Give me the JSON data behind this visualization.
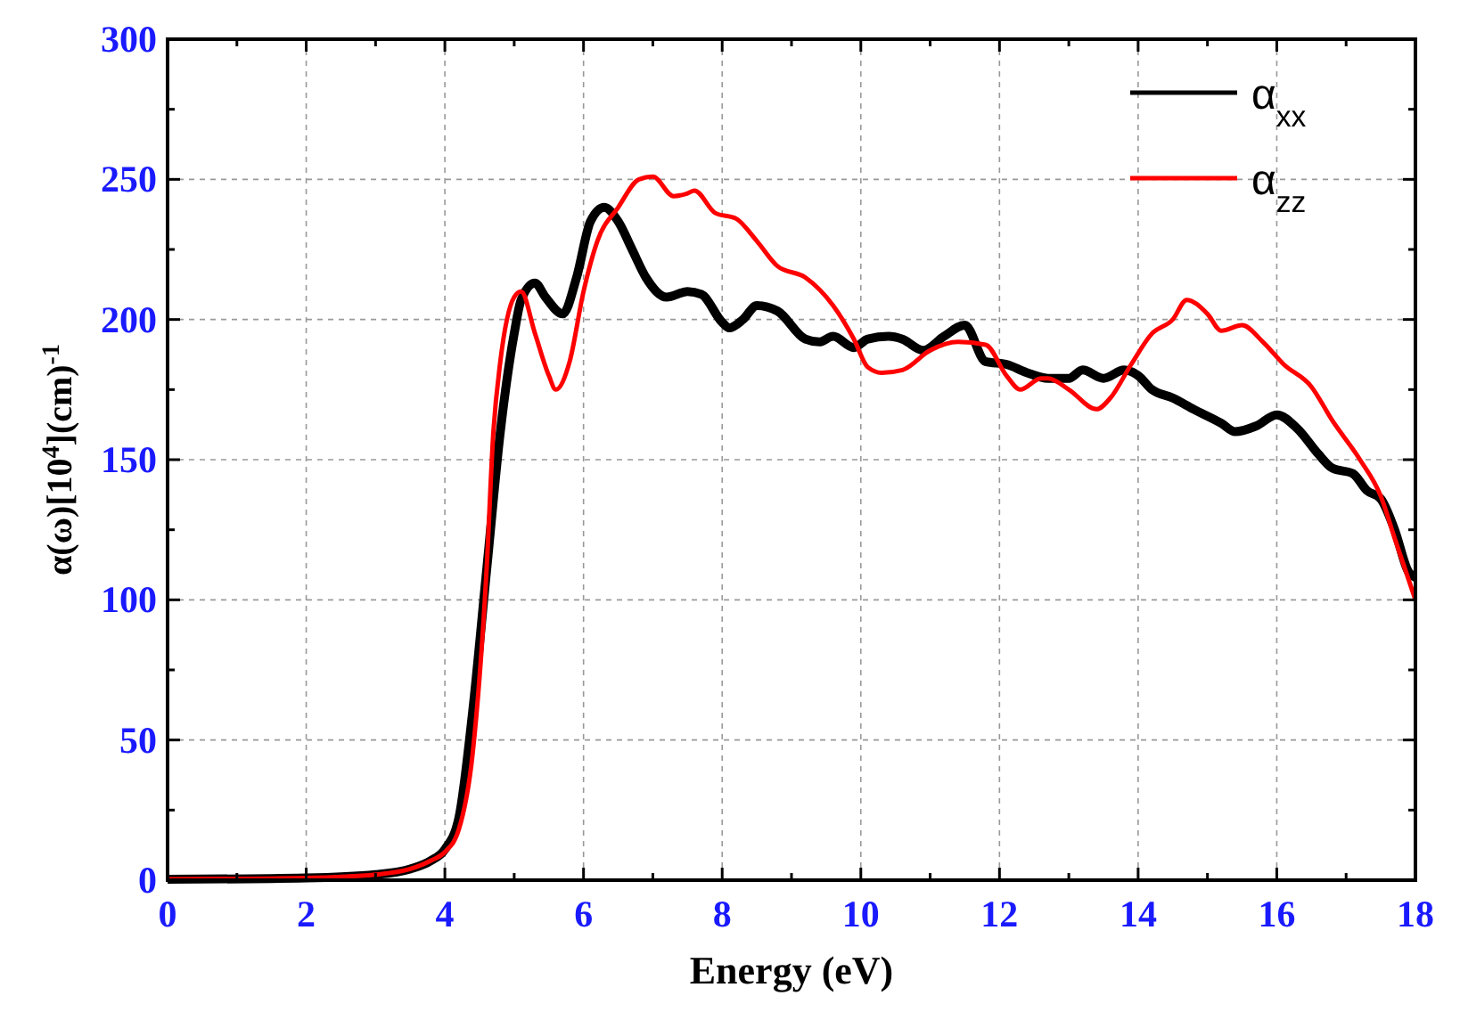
{
  "chart_data": {
    "type": "line",
    "xlabel": "Energy (eV)",
    "ylabel": "α(ω)[10$^{4}$](cm)$^{-1}$",
    "xlim": [
      0,
      18
    ],
    "ylim": [
      0,
      300
    ],
    "xticks": [
      0,
      {
        "value": 1,
        "label": null
      },
      2,
      {
        "value": 3,
        "label": null
      },
      4,
      {
        "value": 5,
        "label": null
      },
      6,
      {
        "value": 7,
        "label": null
      },
      8,
      {
        "value": 9,
        "label": null
      },
      10,
      {
        "value": 11,
        "label": null
      },
      12,
      {
        "value": 13,
        "label": null
      },
      14,
      {
        "value": 15,
        "label": null
      },
      16,
      {
        "value": 17,
        "label": null
      },
      18
    ],
    "yticks": [
      0,
      {
        "value": 25,
        "label": null
      },
      50,
      {
        "value": 75,
        "label": null
      },
      100,
      {
        "value": 125,
        "label": null
      },
      150,
      {
        "value": 175,
        "label": null
      },
      200,
      {
        "value": 225,
        "label": null
      },
      250,
      {
        "value": 275,
        "label": null
      },
      300
    ],
    "grid": true,
    "legend": "top right",
    "line_style": "solid",
    "marker": "none",
    "series": [
      {
        "name": "α$_{xx}$",
        "color": "#000000",
        "x": [
          0,
          2,
          3,
          3.5,
          3.8,
          4.0,
          4.2,
          4.4,
          4.6,
          4.8,
          5.0,
          5.1,
          5.3,
          5.45,
          5.7,
          5.9,
          6.1,
          6.3,
          6.5,
          6.7,
          6.9,
          7.2,
          7.5,
          7.7,
          8.0,
          8.1,
          8.3,
          8.5,
          8.8,
          9.2,
          9.4,
          9.6,
          9.9,
          10.1,
          10.4,
          10.6,
          10.9,
          11.2,
          11.5,
          11.8,
          12.1,
          12.4,
          12.7,
          13.0,
          13.2,
          13.5,
          13.8,
          14.0,
          14.2,
          14.5,
          14.8,
          15.2,
          15.4,
          15.7,
          16.0,
          16.3,
          16.6,
          16.8,
          17.1,
          17.3,
          17.5,
          17.7,
          17.9,
          18
        ],
        "values": [
          0.3,
          0.8,
          2,
          4,
          7,
          11,
          22,
          60,
          110,
          160,
          195,
          207,
          213,
          208,
          202,
          215,
          235,
          240,
          235,
          225,
          215,
          208,
          210,
          209,
          199,
          197,
          200,
          205,
          203,
          193,
          192,
          194,
          190,
          193,
          194,
          193,
          189,
          194,
          198,
          185,
          184,
          181,
          179,
          179,
          182,
          179,
          182,
          180,
          175,
          172,
          168,
          163,
          160,
          162,
          166,
          161,
          152,
          147,
          145,
          139,
          136,
          125,
          110,
          108
        ]
      },
      {
        "name": "α$_{zz}$",
        "color": "#ff0000",
        "x": [
          0,
          2,
          3,
          3.5,
          3.8,
          4.0,
          4.2,
          4.4,
          4.6,
          4.7,
          4.8,
          5.0,
          5.1,
          5.3,
          5.5,
          5.6,
          5.8,
          6.0,
          6.2,
          6.5,
          6.8,
          7.0,
          7.3,
          7.5,
          7.6,
          7.9,
          8.2,
          8.5,
          8.8,
          9.2,
          9.6,
          9.9,
          10.1,
          10.3,
          10.6,
          11.0,
          11.4,
          11.8,
          12.1,
          12.3,
          12.6,
          12.7,
          13.0,
          13.4,
          13.6,
          13.9,
          14.2,
          14.5,
          14.7,
          15.0,
          15.2,
          15.5,
          15.8,
          16.1,
          16.5,
          16.8,
          17.2,
          17.5,
          17.7,
          18
        ],
        "values": [
          0.3,
          0.8,
          2,
          4,
          7,
          10,
          18,
          45,
          110,
          160,
          185,
          208,
          210,
          195,
          180,
          175,
          185,
          210,
          228,
          240,
          250,
          251,
          244,
          245,
          246,
          238,
          236,
          228,
          219,
          215,
          205,
          193,
          183,
          181,
          182,
          189,
          192,
          191,
          180,
          175,
          179,
          179,
          175,
          168,
          172,
          184,
          195,
          200,
          207,
          202,
          196,
          198,
          192,
          184,
          176,
          164,
          150,
          137,
          122,
          100
        ]
      }
    ]
  }
}
